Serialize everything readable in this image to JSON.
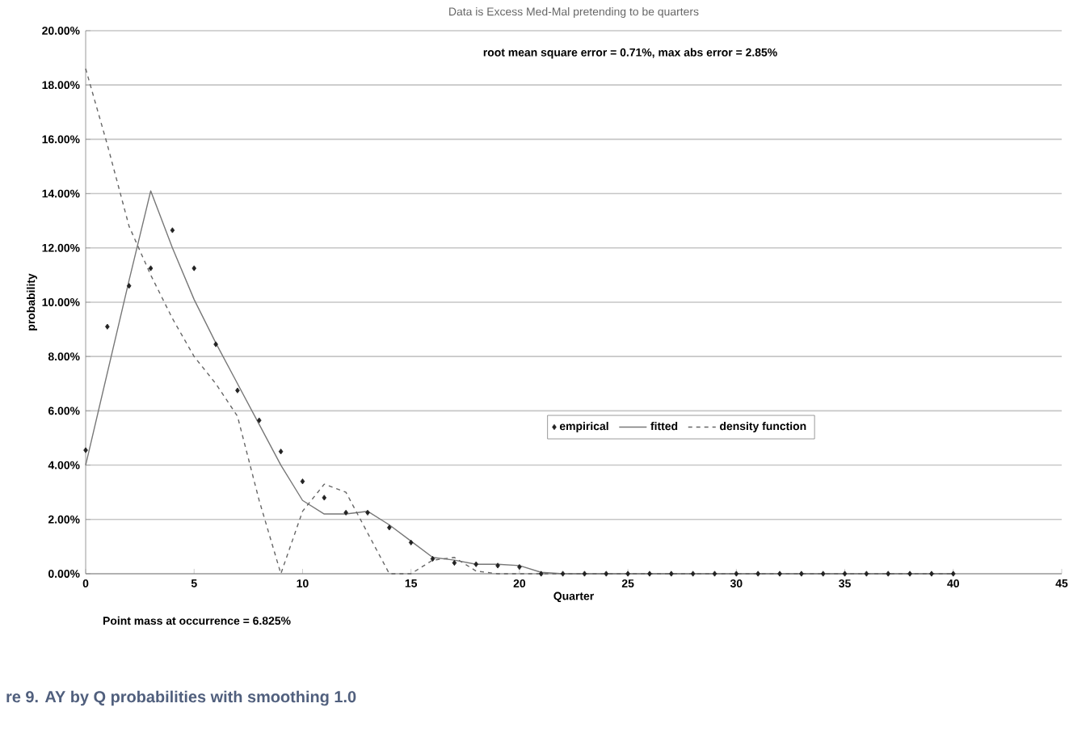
{
  "chart_data": {
    "type": "line",
    "title": "Data is Excess Med-Mal pretending to be quarters",
    "xlabel": "Quarter",
    "ylabel": "probability",
    "xlim": [
      0,
      45
    ],
    "xticks": [
      0,
      5,
      10,
      15,
      20,
      25,
      30,
      35,
      40,
      45
    ],
    "ylim": [
      0,
      20
    ],
    "yticks": [
      {
        "value": 0,
        "label": "0.00%"
      },
      {
        "value": 2,
        "label": "2.00%"
      },
      {
        "value": 4,
        "label": "4.00%"
      },
      {
        "value": 6,
        "label": "6.00%"
      },
      {
        "value": 8,
        "label": "8.00%"
      },
      {
        "value": 10,
        "label": "10.00%"
      },
      {
        "value": 12,
        "label": "12.00%"
      },
      {
        "value": 14,
        "label": "14.00%"
      },
      {
        "value": 16,
        "label": "16.00%"
      },
      {
        "value": 18,
        "label": "18.00%"
      },
      {
        "value": 20,
        "label": "20.00%"
      }
    ],
    "grid": "y",
    "legend": "right",
    "series": [
      {
        "name": "empirical",
        "type": "scatter",
        "marker": "diamond",
        "color": "#222222",
        "x": [
          0,
          1,
          2,
          3,
          4,
          5,
          6,
          7,
          8,
          9,
          10,
          11,
          12,
          13,
          14,
          15,
          16,
          17,
          18,
          19,
          20,
          21,
          22,
          23,
          24,
          25,
          26,
          27,
          28,
          29,
          30,
          31,
          32,
          33,
          34,
          35,
          36,
          37,
          38,
          39,
          40
        ],
        "values": [
          4.55,
          9.1,
          10.6,
          11.25,
          12.65,
          11.25,
          8.45,
          6.75,
          5.65,
          4.5,
          3.4,
          2.8,
          2.25,
          2.25,
          1.7,
          1.15,
          0.55,
          0.4,
          0.35,
          0.3,
          0.25,
          0,
          0,
          0,
          0,
          0,
          0,
          0,
          0,
          0,
          0,
          0,
          0,
          0,
          0,
          0,
          0,
          0,
          0,
          0,
          0
        ]
      },
      {
        "name": "fitted",
        "line_style": "solid",
        "color": "#777777",
        "x": [
          0,
          1,
          2,
          3,
          4,
          5,
          6,
          7,
          8,
          9,
          10,
          11,
          12,
          13,
          14,
          15,
          16,
          17,
          18,
          19,
          20,
          21,
          22,
          40
        ],
        "values": [
          4.0,
          7.4,
          10.8,
          14.1,
          12.0,
          10.1,
          8.5,
          7.0,
          5.5,
          4.0,
          2.7,
          2.2,
          2.2,
          2.3,
          1.8,
          1.2,
          0.6,
          0.5,
          0.35,
          0.35,
          0.3,
          0.05,
          0,
          0
        ]
      },
      {
        "name": "density function",
        "line_style": "dashed",
        "color": "#666666",
        "x": [
          0,
          1,
          2,
          3,
          4,
          5,
          6,
          7,
          8,
          9,
          10,
          11,
          12,
          13,
          14,
          15,
          16,
          17,
          18,
          19,
          40
        ],
        "values": [
          18.6,
          15.8,
          12.8,
          11.0,
          9.4,
          8.0,
          7.0,
          5.8,
          2.7,
          0,
          2.3,
          3.3,
          3.0,
          1.5,
          0,
          0,
          0.5,
          0.6,
          0.1,
          0,
          0
        ]
      }
    ],
    "annotations": [
      "root mean square error = 0.71%, max abs error = 2.85%",
      "Point mass at occurrence = 6.825%",
      "re 9. AY by Q probabilities with smoothing 1.0"
    ]
  }
}
